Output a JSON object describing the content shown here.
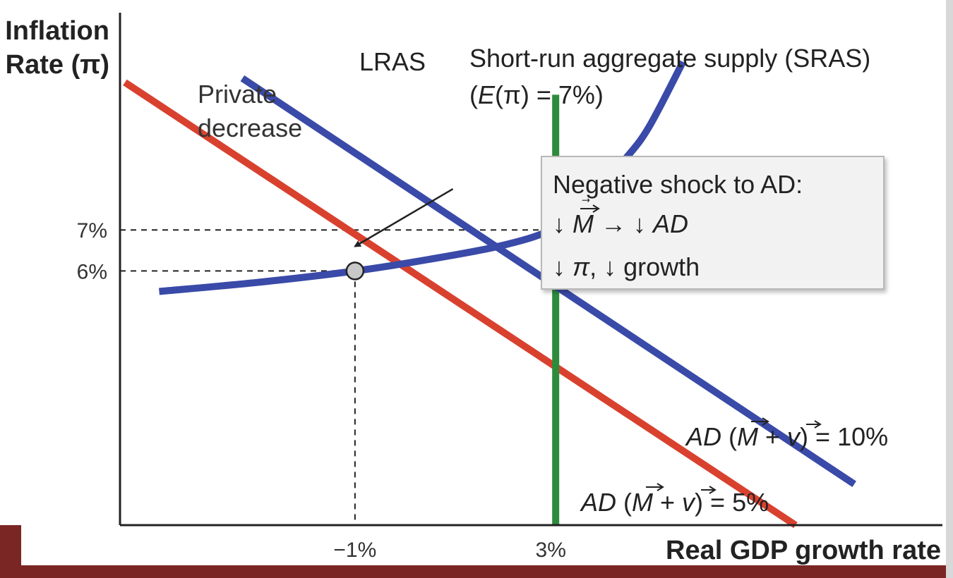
{
  "chart_data": {
    "type": "line",
    "ylabel": [
      "Inflation",
      "Rate (π)"
    ],
    "xlabel": "Real GDP growth rate",
    "x_ticks": [
      {
        "value": -1,
        "label": "−1%"
      },
      {
        "value": 3,
        "label": "3%"
      }
    ],
    "y_ticks": [
      {
        "value": 7,
        "label": "7%"
      },
      {
        "value": 6,
        "label": "6%"
      }
    ],
    "xlim": [
      -5.8,
      11
    ],
    "ylim": [
      -0.2,
      12.3
    ],
    "series": [
      {
        "key": "ad_high",
        "name": "AD (M + v) = 10%",
        "label_parts": [
          "AD",
          " (",
          "M",
          " + ",
          "v",
          ") = 10%"
        ],
        "color": "#3a4aa8",
        "points": [
          [
            -3.3,
            10.7
          ],
          [
            9.2,
            0.8
          ]
        ]
      },
      {
        "key": "ad_low",
        "name": "AD (M + v) = 5%",
        "label_parts": [
          "AD",
          " (",
          "M",
          " + ",
          "v",
          ") = 5%"
        ],
        "color": "#d9412f",
        "points": [
          [
            -5.7,
            10.6
          ],
          [
            8.0,
            -0.2
          ]
        ]
      },
      {
        "key": "lras",
        "name": "LRAS",
        "color": "#2e8b3c",
        "points": [
          [
            3.1,
            10.3
          ],
          [
            3.1,
            -0.2
          ]
        ]
      },
      {
        "key": "sras",
        "name": "Short-run aggregate supply (SRAS)",
        "subtitle_parts": [
          "(",
          "E",
          "(π) = 7%)"
        ],
        "color": "#3a4aa8",
        "points": [
          [
            -5.0,
            5.5
          ],
          [
            -3.0,
            5.72
          ],
          [
            -1.0,
            6.0
          ],
          [
            0.5,
            6.28
          ],
          [
            2.0,
            6.62
          ],
          [
            3.0,
            7.0
          ],
          [
            3.7,
            7.6
          ],
          [
            4.5,
            8.7
          ],
          [
            5.0,
            9.5
          ],
          [
            5.7,
            11.1
          ]
        ]
      }
    ],
    "points_of_interest": [
      {
        "x": -1,
        "y": 6,
        "color": "#c8c8c8"
      }
    ],
    "guides": [
      {
        "from": [
          -5.8,
          7
        ],
        "to": [
          3.1,
          7
        ]
      },
      {
        "from": [
          -5.8,
          6
        ],
        "to": [
          -1,
          6
        ]
      },
      {
        "from": [
          -1,
          6
        ],
        "to": [
          -1,
          -0.2
        ]
      }
    ],
    "annotations": {
      "private_decrease": [
        "Private",
        "decrease"
      ],
      "arrow": {
        "from": [
          1.0,
          8.0
        ],
        "to": [
          -1.0,
          6.6
        ]
      },
      "box": {
        "line1": "Negative shock to AD:",
        "line2_parts": [
          "↓ ",
          "M",
          " → ↓ ",
          "AD"
        ],
        "line3_parts": [
          "↓ ",
          "π",
          ", ↓ growth"
        ]
      }
    }
  },
  "colors": {
    "footer_band": "#7a2624",
    "axis": "#222222",
    "box_fill": "#f2f2f2",
    "box_stroke": "#b8b8b8"
  }
}
